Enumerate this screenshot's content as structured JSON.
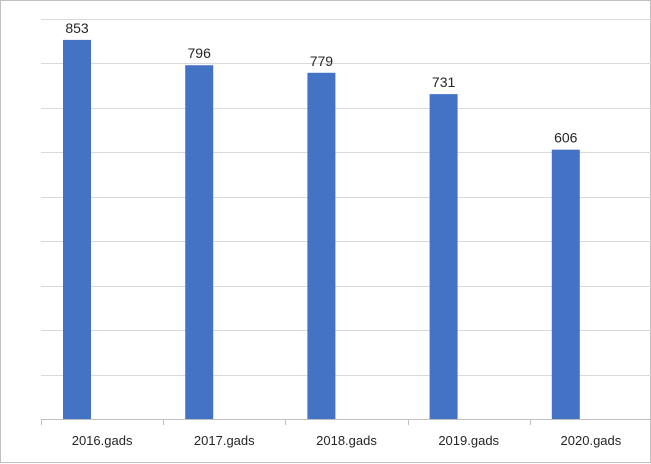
{
  "chart_data": {
    "type": "bar",
    "categories": [
      "2016.gads",
      "2017.gads",
      "2018.gads",
      "2019.gads",
      "2020.gads"
    ],
    "values": [
      853,
      796,
      779,
      731,
      606
    ],
    "title": "",
    "xlabel": "",
    "ylabel": "",
    "ylim": [
      0,
      900
    ],
    "grid": true,
    "legend": "none",
    "bar_color": "#4472c4",
    "data_labels": true
  }
}
